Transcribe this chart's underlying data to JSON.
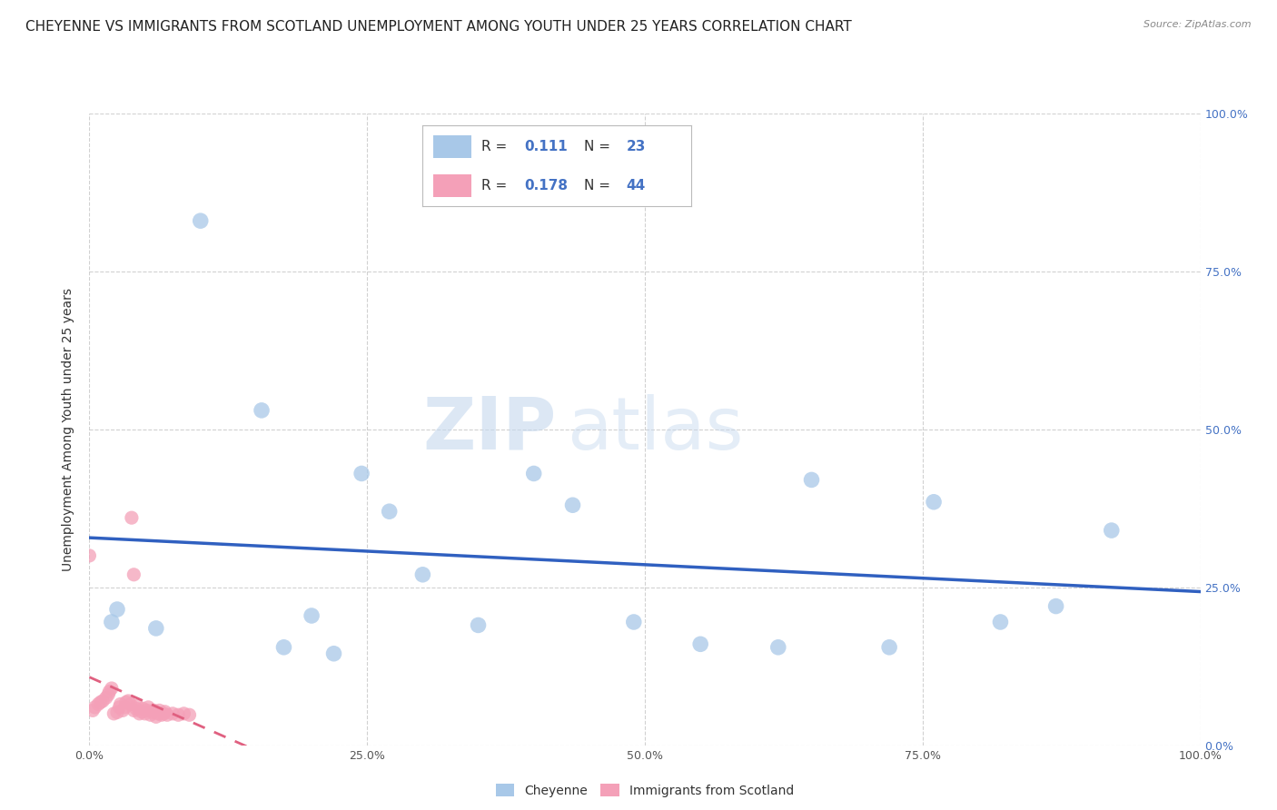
{
  "title": "CHEYENNE VS IMMIGRANTS FROM SCOTLAND UNEMPLOYMENT AMONG YOUTH UNDER 25 YEARS CORRELATION CHART",
  "source": "Source: ZipAtlas.com",
  "ylabel": "Unemployment Among Youth under 25 years",
  "cheyenne_R": 0.111,
  "cheyenne_N": 23,
  "scotland_R": 0.178,
  "scotland_N": 44,
  "cheyenne_color": "#a8c8e8",
  "scotland_color": "#f4a0b8",
  "regression_line_color_blue": "#3060c0",
  "regression_line_color_pink": "#e06080",
  "watermark_zip": "ZIP",
  "watermark_atlas": "atlas",
  "cheyenne_x": [
    0.02,
    0.025,
    0.06,
    0.1,
    0.155,
    0.175,
    0.2,
    0.22,
    0.245,
    0.27,
    0.3,
    0.35,
    0.4,
    0.435,
    0.49,
    0.55,
    0.62,
    0.65,
    0.72,
    0.76,
    0.82,
    0.87,
    0.92
  ],
  "cheyenne_y": [
    0.195,
    0.215,
    0.185,
    0.83,
    0.53,
    0.155,
    0.205,
    0.145,
    0.43,
    0.37,
    0.27,
    0.19,
    0.43,
    0.38,
    0.195,
    0.16,
    0.155,
    0.42,
    0.155,
    0.385,
    0.195,
    0.22,
    0.34
  ],
  "scotland_x": [
    0.0,
    0.003,
    0.005,
    0.008,
    0.01,
    0.012,
    0.015,
    0.017,
    0.018,
    0.02,
    0.022,
    0.025,
    0.027,
    0.028,
    0.03,
    0.032,
    0.033,
    0.035,
    0.037,
    0.038,
    0.04,
    0.04,
    0.042,
    0.043,
    0.045,
    0.047,
    0.048,
    0.05,
    0.052,
    0.053,
    0.055,
    0.057,
    0.058,
    0.06,
    0.062,
    0.063,
    0.065,
    0.067,
    0.068,
    0.07,
    0.075,
    0.08,
    0.085,
    0.09
  ],
  "scotland_y": [
    0.3,
    0.055,
    0.06,
    0.065,
    0.068,
    0.07,
    0.075,
    0.08,
    0.085,
    0.09,
    0.05,
    0.052,
    0.06,
    0.065,
    0.055,
    0.06,
    0.068,
    0.07,
    0.065,
    0.36,
    0.055,
    0.27,
    0.058,
    0.062,
    0.05,
    0.053,
    0.058,
    0.05,
    0.055,
    0.06,
    0.048,
    0.052,
    0.055,
    0.045,
    0.05,
    0.055,
    0.048,
    0.05,
    0.053,
    0.048,
    0.05,
    0.048,
    0.05,
    0.048
  ],
  "xmin": 0.0,
  "xmax": 1.0,
  "ymin": 0.0,
  "ymax": 1.0,
  "x_ticks": [
    0.0,
    0.25,
    0.5,
    0.75,
    1.0
  ],
  "y_ticks": [
    0.0,
    0.25,
    0.5,
    0.75,
    1.0
  ],
  "grid_color": "#cccccc",
  "background_color": "#ffffff",
  "title_fontsize": 11,
  "label_fontsize": 10,
  "right_tick_color": "#4472c4"
}
